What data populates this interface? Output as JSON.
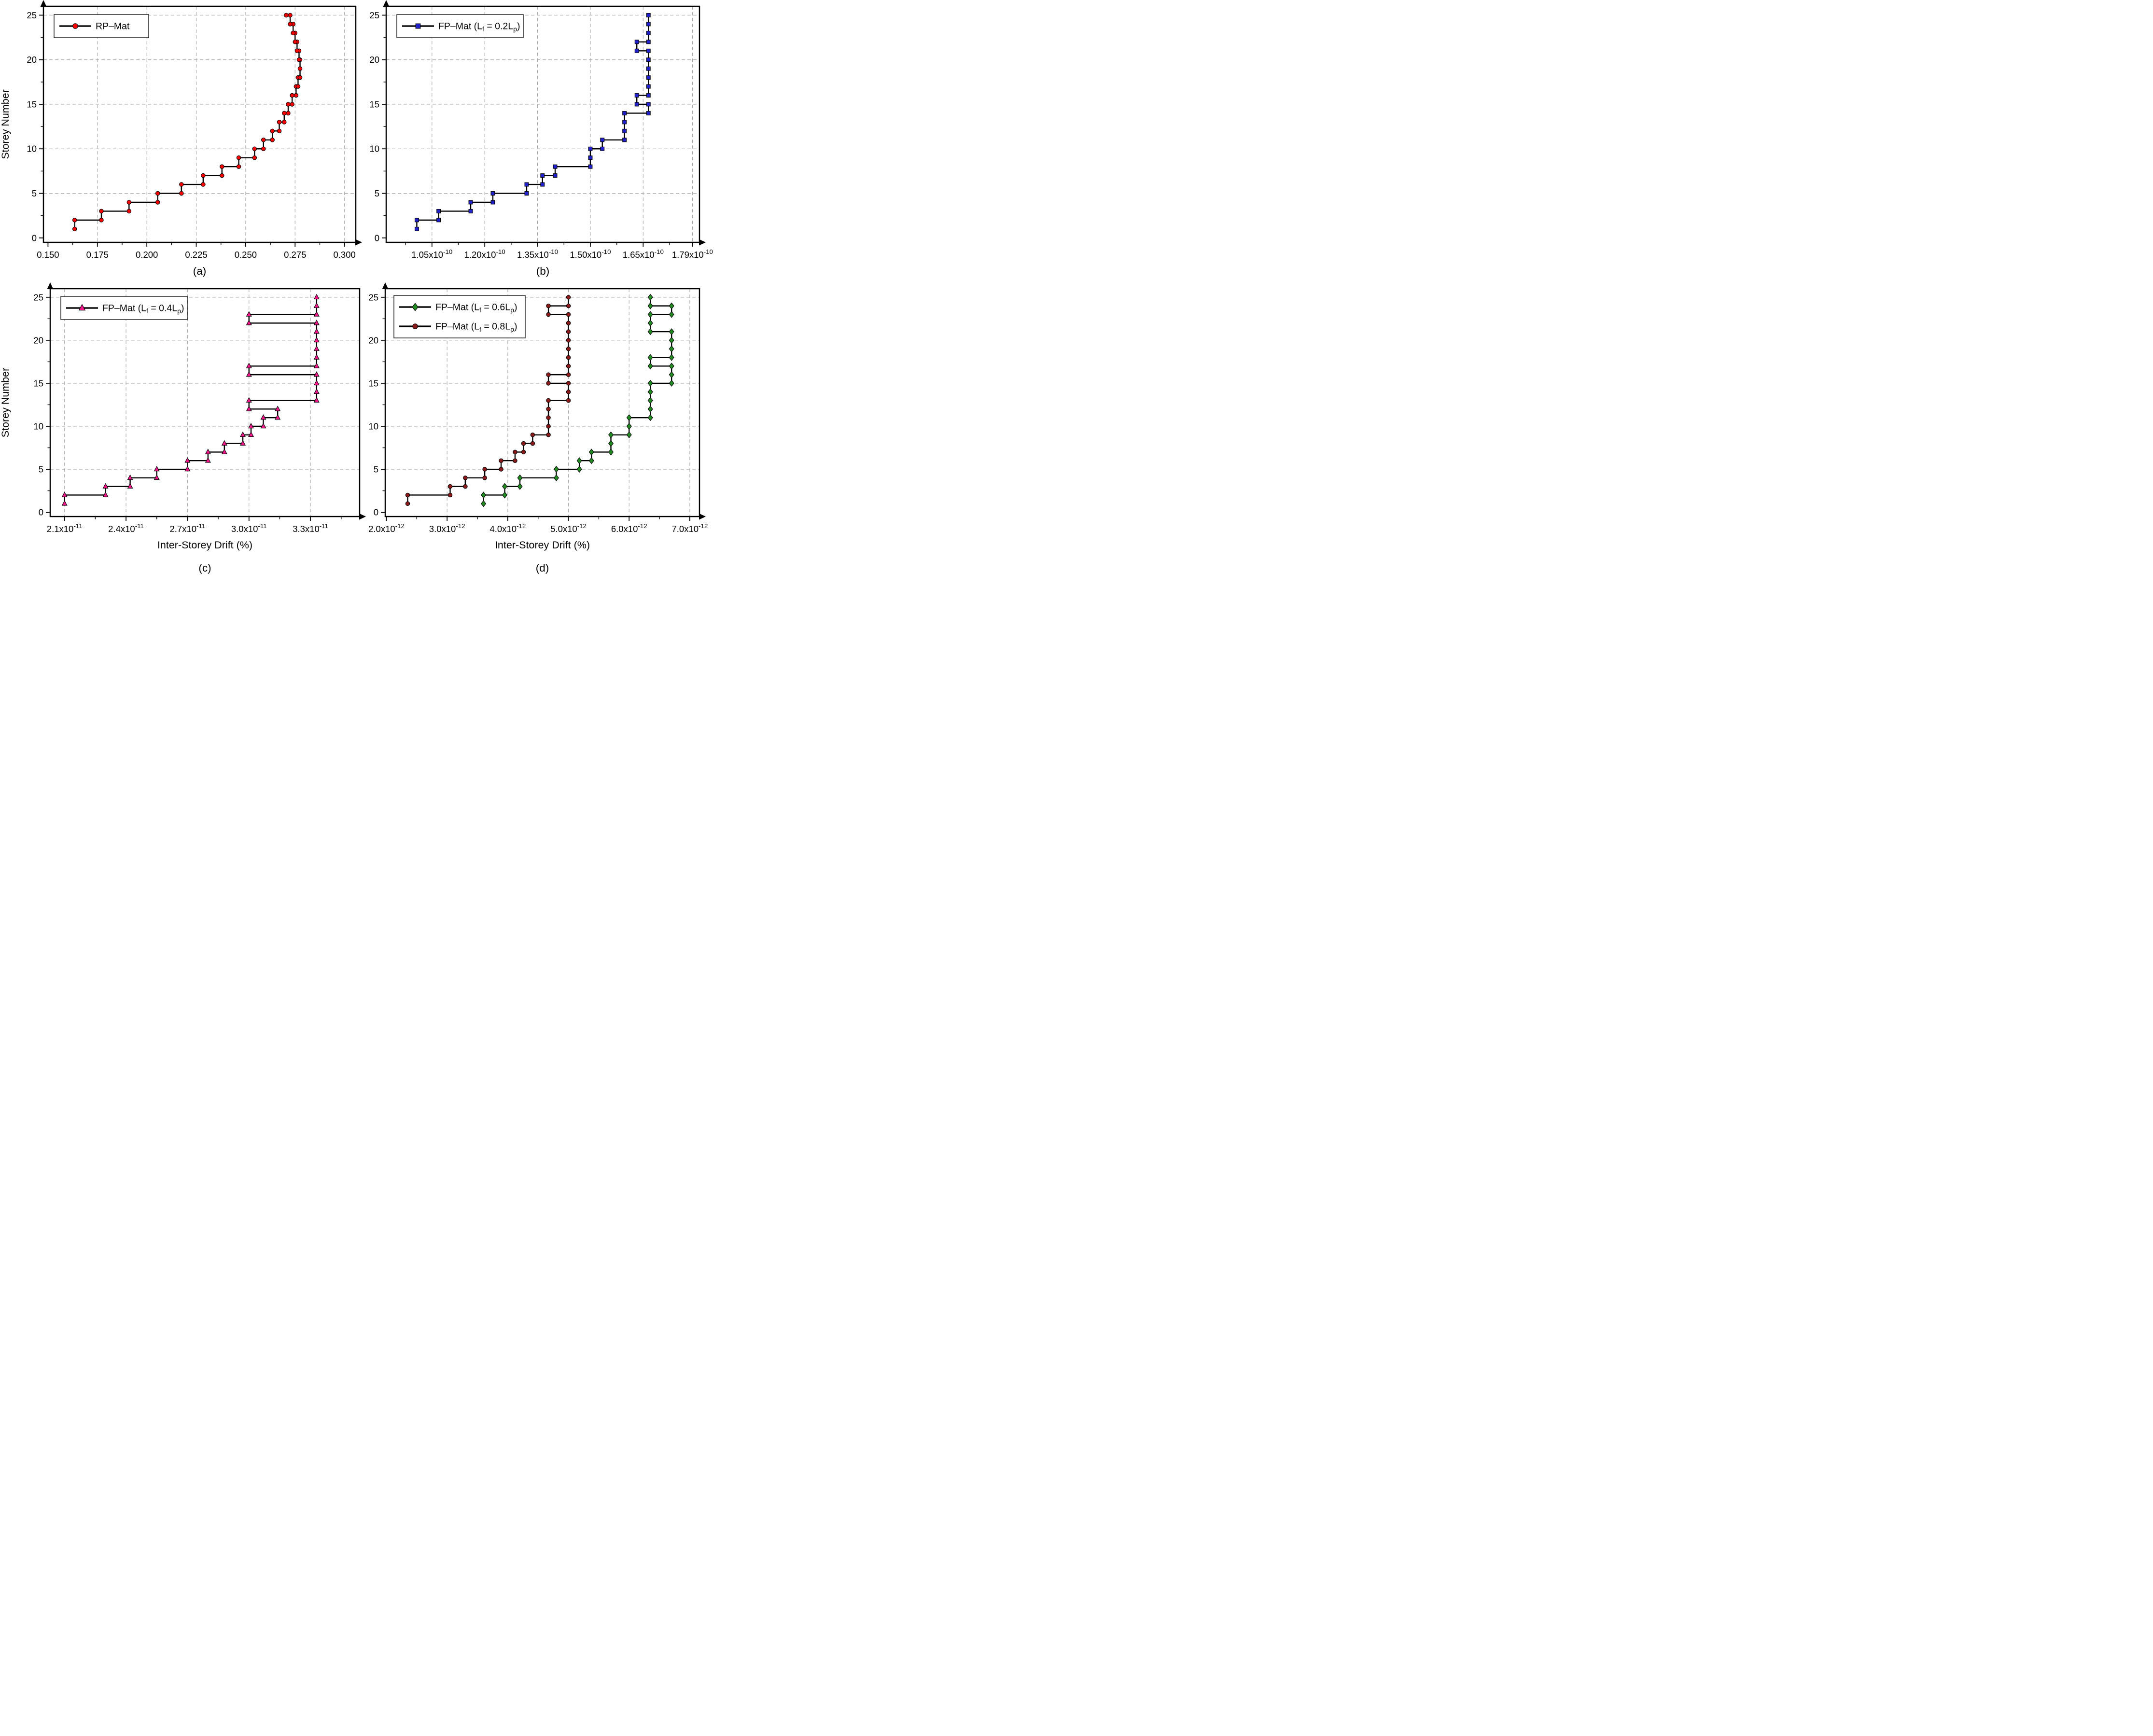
{
  "figure": {
    "background": "#ffffff",
    "frame_color": "#000000",
    "grid_color": "#a6a6a6",
    "line_color": "#000000",
    "y_axis_title": "Storey Number",
    "x_axis_title": "Inter-Storey Drift (%)",
    "y_tick_labels": [
      "0",
      "5",
      "10",
      "15",
      "20",
      "25"
    ]
  },
  "chart_data": [
    {
      "id": "a",
      "type": "line",
      "subtype": "step-staircase",
      "tag": "(a)",
      "title": "",
      "xlabel": "",
      "ylabel": "Storey Number",
      "x_range": [
        0.1477,
        0.3057
      ],
      "x_ticks": [
        {
          "v": 0.15,
          "parts": [
            {
              "t": "0.150"
            }
          ]
        },
        {
          "v": 0.175,
          "parts": [
            {
              "t": "0.175"
            }
          ]
        },
        {
          "v": 0.2,
          "parts": [
            {
              "t": "0.200"
            }
          ]
        },
        {
          "v": 0.225,
          "parts": [
            {
              "t": "0.225"
            }
          ]
        },
        {
          "v": 0.25,
          "parts": [
            {
              "t": "0.250"
            }
          ]
        },
        {
          "v": 0.275,
          "parts": [
            {
              "t": "0.275"
            }
          ]
        },
        {
          "v": 0.3,
          "parts": [
            {
              "t": "0.300"
            }
          ]
        }
      ],
      "x_minor_step": 0.0125,
      "y_range": [
        -0.5,
        26
      ],
      "y_ticks": [
        0,
        5,
        10,
        15,
        20,
        25
      ],
      "y_minor_step": 2.5,
      "storeys": [
        1,
        2,
        3,
        4,
        5,
        6,
        7,
        8,
        9,
        10,
        11,
        12,
        13,
        14,
        15,
        16,
        17,
        18,
        19,
        20,
        21,
        22,
        23,
        24,
        25
      ],
      "legend_position": "top-left",
      "grid": true,
      "series": [
        {
          "name": "RP-Mat",
          "label_parts": [
            {
              "t": "RP–Mat"
            }
          ],
          "marker": "circle",
          "color": "#fe0000",
          "values": [
            0.1635,
            0.177,
            0.191,
            0.2055,
            0.2175,
            0.2285,
            0.238,
            0.2465,
            0.2545,
            0.259,
            0.2635,
            0.267,
            0.2695,
            0.2715,
            0.2735,
            0.2755,
            0.2765,
            0.2775,
            0.2775,
            0.277,
            0.276,
            0.275,
            0.274,
            0.2725,
            0.2705
          ]
        }
      ]
    },
    {
      "id": "b",
      "type": "line",
      "subtype": "step-staircase",
      "tag": "(b)",
      "title": "",
      "xlabel": "",
      "ylabel": "",
      "x_value_scale": "1e-10",
      "x_range": [
        0.92,
        1.81
      ],
      "x_ticks": [
        {
          "v": 1.05,
          "parts": [
            {
              "t": "1.05x10"
            },
            {
              "t": "-10",
              "up": true
            }
          ]
        },
        {
          "v": 1.2,
          "parts": [
            {
              "t": "1.20x10"
            },
            {
              "t": "-10",
              "up": true
            }
          ]
        },
        {
          "v": 1.35,
          "parts": [
            {
              "t": "1.35x10"
            },
            {
              "t": "-10",
              "up": true
            }
          ]
        },
        {
          "v": 1.5,
          "parts": [
            {
              "t": "1.50x10"
            },
            {
              "t": "-10",
              "up": true
            }
          ]
        },
        {
          "v": 1.65,
          "parts": [
            {
              "t": "1.65x10"
            },
            {
              "t": "-10",
              "up": true
            }
          ]
        },
        {
          "v": 1.79,
          "parts": [
            {
              "t": "1.79x10"
            },
            {
              "t": "-10",
              "up": true
            }
          ]
        }
      ],
      "x_minor_step": 0.075,
      "y_range": [
        -0.5,
        26
      ],
      "y_ticks": [
        0,
        5,
        10,
        15,
        20,
        25
      ],
      "y_minor_step": 2.5,
      "storeys": [
        1,
        2,
        3,
        4,
        5,
        6,
        7,
        8,
        9,
        10,
        11,
        12,
        13,
        14,
        15,
        16,
        17,
        18,
        19,
        20,
        21,
        22,
        23,
        24,
        25
      ],
      "legend_position": "top-left",
      "grid": true,
      "series": [
        {
          "name": "FP-Mat (Lf = 0.2Lp)",
          "label_parts": [
            {
              "t": "FP–Mat (L"
            },
            {
              "t": "f",
              "s": true
            },
            {
              "t": " = 0.2L"
            },
            {
              "t": "p",
              "s": true
            },
            {
              "t": ")"
            }
          ],
          "marker": "square",
          "color": "#2222cc",
          "values": [
            1.007,
            1.069,
            1.16,
            1.223,
            1.319,
            1.364,
            1.4,
            1.5,
            1.5,
            1.534,
            1.597,
            1.597,
            1.597,
            1.665,
            1.632,
            1.665,
            1.665,
            1.665,
            1.665,
            1.665,
            1.632,
            1.665,
            1.665,
            1.665,
            1.665
          ]
        }
      ]
    },
    {
      "id": "c",
      "type": "line",
      "subtype": "step-staircase",
      "tag": "(c)",
      "title": "",
      "xlabel": "Inter-Storey Drift (%)",
      "ylabel": "Storey Number",
      "x_value_scale": "1e-11",
      "x_range": [
        2.03,
        3.54
      ],
      "x_ticks": [
        {
          "v": 2.1,
          "parts": [
            {
              "t": "2.1x10"
            },
            {
              "t": "-11",
              "up": true
            }
          ]
        },
        {
          "v": 2.4,
          "parts": [
            {
              "t": "2.4x10"
            },
            {
              "t": "-11",
              "up": true
            }
          ]
        },
        {
          "v": 2.7,
          "parts": [
            {
              "t": "2.7x10"
            },
            {
              "t": "-11",
              "up": true
            }
          ]
        },
        {
          "v": 3.0,
          "parts": [
            {
              "t": "3.0x10"
            },
            {
              "t": "-11",
              "up": true
            }
          ]
        },
        {
          "v": 3.3,
          "parts": [
            {
              "t": "3.3x10"
            },
            {
              "t": "-11",
              "up": true
            }
          ]
        }
      ],
      "x_minor_step": 0.15,
      "y_range": [
        -0.5,
        26
      ],
      "y_ticks": [
        0,
        5,
        10,
        15,
        20,
        25
      ],
      "y_minor_step": 2.5,
      "storeys": [
        1,
        2,
        3,
        4,
        5,
        6,
        7,
        8,
        9,
        10,
        11,
        12,
        13,
        14,
        15,
        16,
        17,
        18,
        19,
        20,
        21,
        22,
        23,
        24,
        25
      ],
      "legend_position": "top-left",
      "grid": true,
      "series": [
        {
          "name": "FP-Mat (Lf = 0.4Lp)",
          "label_parts": [
            {
              "t": "FP–Mat (L"
            },
            {
              "t": "f",
              "s": true
            },
            {
              "t": " = 0.4L"
            },
            {
              "t": "p",
              "s": true
            },
            {
              "t": ")"
            }
          ],
          "marker": "triangle",
          "color": "#f8168d",
          "values": [
            2.1,
            2.3,
            2.42,
            2.55,
            2.7,
            2.8,
            2.88,
            2.97,
            3.01,
            3.07,
            3.14,
            3.0,
            3.33,
            3.33,
            3.33,
            3.0,
            3.33,
            3.33,
            3.33,
            3.33,
            3.33,
            3.0,
            3.33,
            3.33,
            3.33
          ]
        }
      ]
    },
    {
      "id": "d",
      "type": "line",
      "subtype": "step-staircase",
      "tag": "(d)",
      "title": "",
      "xlabel": "Inter-Storey Drift (%)",
      "ylabel": "",
      "x_value_scale": "1e-12",
      "x_range": [
        1.98,
        7.16
      ],
      "x_ticks": [
        {
          "v": 2.0,
          "parts": [
            {
              "t": "2.0x10"
            },
            {
              "t": "-12",
              "up": true
            }
          ]
        },
        {
          "v": 3.0,
          "parts": [
            {
              "t": "3.0x10"
            },
            {
              "t": "-12",
              "up": true
            }
          ]
        },
        {
          "v": 4.0,
          "parts": [
            {
              "t": "4.0x10"
            },
            {
              "t": "-12",
              "up": true
            }
          ]
        },
        {
          "v": 5.0,
          "parts": [
            {
              "t": "5.0x10"
            },
            {
              "t": "-12",
              "up": true
            }
          ]
        },
        {
          "v": 6.0,
          "parts": [
            {
              "t": "6.0x10"
            },
            {
              "t": "-12",
              "up": true
            }
          ]
        },
        {
          "v": 7.0,
          "parts": [
            {
              "t": "7.0x10"
            },
            {
              "t": "-12",
              "up": true
            }
          ]
        }
      ],
      "x_minor_step": 0.5,
      "y_range": [
        -0.5,
        26
      ],
      "y_ticks": [
        0,
        5,
        10,
        15,
        20,
        25
      ],
      "y_minor_step": 2.5,
      "storeys": [
        1,
        2,
        3,
        4,
        5,
        6,
        7,
        8,
        9,
        10,
        11,
        12,
        13,
        14,
        15,
        16,
        17,
        18,
        19,
        20,
        21,
        22,
        23,
        24,
        25
      ],
      "legend_position": "top-left",
      "grid": true,
      "series": [
        {
          "name": "FP-Mat (Lf = 0.6Lp)",
          "label_parts": [
            {
              "t": "FP–Mat (L"
            },
            {
              "t": "f",
              "s": true
            },
            {
              "t": " = 0.6L"
            },
            {
              "t": "p",
              "s": true
            },
            {
              "t": ")"
            }
          ],
          "marker": "diamond",
          "color": "#228b22",
          "values": [
            3.6,
            3.95,
            4.2,
            4.8,
            5.18,
            5.38,
            5.7,
            5.7,
            6.0,
            6.0,
            6.35,
            6.35,
            6.35,
            6.35,
            6.7,
            6.7,
            6.35,
            6.7,
            6.7,
            6.7,
            6.35,
            6.35,
            6.7,
            6.35,
            6.35
          ]
        },
        {
          "name": "FP-Mat (Lf = 0.8Lp)",
          "label_parts": [
            {
              "t": "FP–Mat (L"
            },
            {
              "t": "f",
              "s": true
            },
            {
              "t": " = 0.8L"
            },
            {
              "t": "p",
              "s": true
            },
            {
              "t": ")"
            }
          ],
          "marker": "circle",
          "color": "#8b1a1a",
          "values": [
            2.35,
            3.05,
            3.3,
            3.62,
            3.89,
            4.12,
            4.26,
            4.41,
            4.67,
            4.67,
            4.67,
            4.67,
            5.0,
            5.0,
            4.67,
            5.0,
            5.0,
            5.0,
            5.0,
            5.0,
            5.0,
            5.0,
            4.67,
            5.0,
            5.0
          ]
        }
      ]
    }
  ]
}
